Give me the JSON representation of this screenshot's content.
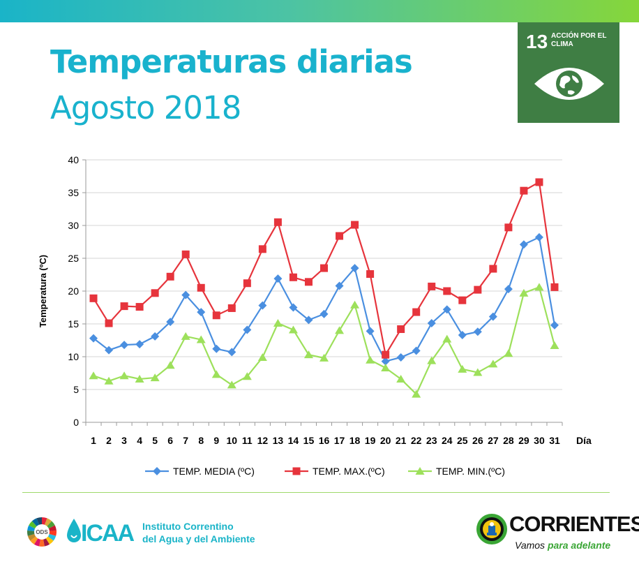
{
  "header": {
    "title": "Temperaturas diarias",
    "subtitle": "Agosto 2018"
  },
  "sdg_badge": {
    "number": "13",
    "text": "ACCIÓN POR EL CLIMA",
    "color": "#3f7e44"
  },
  "footer": {
    "ods_label": "ODS",
    "icaa_logo": "ICAA",
    "institute_name": "Instituto Correntino\ndel Agua y del Ambiente",
    "corrientes": {
      "name": "CORRIENTES",
      "slogan_part1": "Vamos ",
      "slogan_part2": "para adelante"
    }
  },
  "chart_data": {
    "type": "line",
    "title": "",
    "xlabel": "Día",
    "ylabel": "Temperatura (ºC)",
    "ylim": [
      0,
      40
    ],
    "yticks": [
      0,
      5,
      10,
      15,
      20,
      25,
      30,
      35,
      40
    ],
    "categories": [
      "1",
      "2",
      "3",
      "4",
      "5",
      "6",
      "7",
      "8",
      "9",
      "10",
      "11",
      "12",
      "13",
      "14",
      "15",
      "16",
      "17",
      "18",
      "19",
      "20",
      "21",
      "22",
      "23",
      "24",
      "25",
      "26",
      "27",
      "28",
      "29",
      "30",
      "31"
    ],
    "grid": true,
    "legend_position": "bottom",
    "series": [
      {
        "name": "TEMP. MEDIA (ºC)",
        "color": "#4a8fe0",
        "marker": "diamond",
        "values": [
          12.8,
          11.0,
          11.8,
          11.9,
          13.1,
          15.3,
          19.4,
          16.8,
          11.2,
          10.7,
          14.1,
          17.8,
          21.9,
          17.5,
          15.6,
          16.5,
          20.8,
          23.5,
          13.9,
          9.3,
          9.9,
          10.9,
          15.1,
          17.2,
          13.3,
          13.8,
          16.1,
          20.3,
          27.1,
          28.2,
          14.8
        ]
      },
      {
        "name": "TEMP. MAX.(ºC)",
        "color": "#e6343c",
        "marker": "square",
        "values": [
          18.9,
          15.1,
          17.7,
          17.6,
          19.7,
          22.2,
          25.6,
          20.5,
          16.3,
          17.4,
          21.2,
          26.4,
          30.5,
          22.1,
          21.4,
          23.5,
          28.4,
          30.1,
          22.6,
          10.3,
          14.2,
          16.8,
          20.7,
          20.0,
          18.6,
          20.2,
          23.4,
          29.7,
          35.3,
          36.6,
          20.6
        ]
      },
      {
        "name": "TEMP. MIN.(ºC)",
        "color": "#9de05b",
        "marker": "triangle",
        "values": [
          7.1,
          6.3,
          7.1,
          6.6,
          6.8,
          8.7,
          13.1,
          12.6,
          7.3,
          5.7,
          7.0,
          9.9,
          15.1,
          14.1,
          10.3,
          9.8,
          14.0,
          17.9,
          9.5,
          8.3,
          6.6,
          4.3,
          9.4,
          12.7,
          8.1,
          7.6,
          8.9,
          10.5,
          19.7,
          20.6,
          11.7
        ]
      }
    ]
  }
}
